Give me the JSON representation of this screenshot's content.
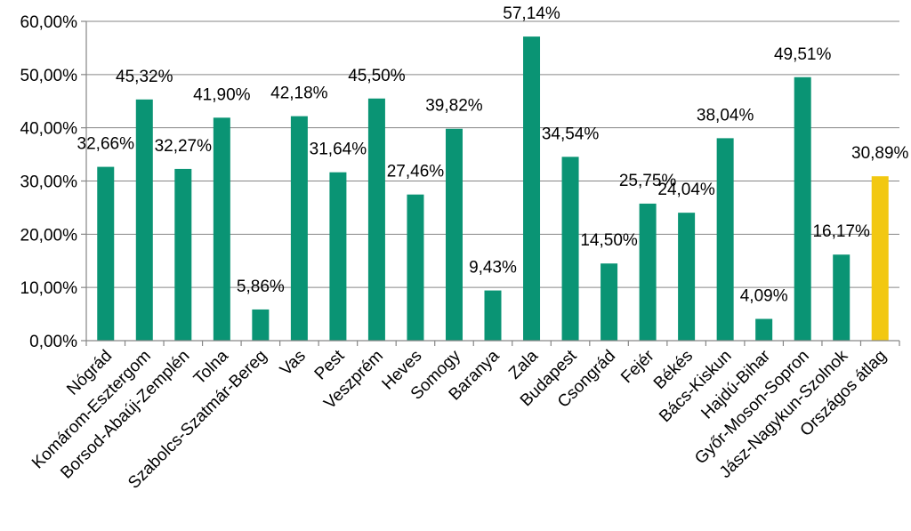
{
  "chart_data": {
    "type": "bar",
    "title": "",
    "xlabel": "",
    "ylabel": "",
    "ylim": [
      0,
      60
    ],
    "y_ticks": [
      "0,00%",
      "10,00%",
      "20,00%",
      "30,00%",
      "40,00%",
      "50,00%",
      "60,00%"
    ],
    "y_tick_values": [
      0,
      10,
      20,
      30,
      40,
      50,
      60
    ],
    "grid": true,
    "legend": "none",
    "colors": {
      "default": "#0A9474",
      "highlight": "#F2C811"
    },
    "categories": [
      "Nógrád",
      "Komárom-Esztergom",
      "Borsod-Abaúj-Zemplén",
      "Tolna",
      "Szabolcs-Szatmár-Bereg",
      "Vas",
      "Pest",
      "Veszprém",
      "Heves",
      "Somogy",
      "Baranya",
      "Zala",
      "Budapest",
      "Csongrád",
      "Fejér",
      "Békés",
      "Bács-Kiskun",
      "Hajdú-Bihar",
      "Győr-Moson-Sopron",
      "Jász-Nagykun-Szolnok",
      "Országos átlag"
    ],
    "values": [
      32.66,
      45.32,
      32.27,
      41.9,
      5.86,
      42.18,
      31.64,
      45.5,
      27.46,
      39.82,
      9.43,
      57.14,
      34.54,
      14.5,
      25.75,
      24.04,
      38.04,
      4.09,
      49.51,
      16.17,
      30.89
    ],
    "labels": [
      "32,66%",
      "45,32%",
      "32,27%",
      "41,90%",
      "5,86%",
      "42,18%",
      "31,64%",
      "45,50%",
      "27,46%",
      "39,82%",
      "9,43%",
      "57,14%",
      "34,54%",
      "14,50%",
      "25,75%",
      "24,04%",
      "38,04%",
      "4,09%",
      "49,51%",
      "16,17%",
      "30,89%"
    ],
    "highlight": [
      "Országos átlag"
    ]
  }
}
